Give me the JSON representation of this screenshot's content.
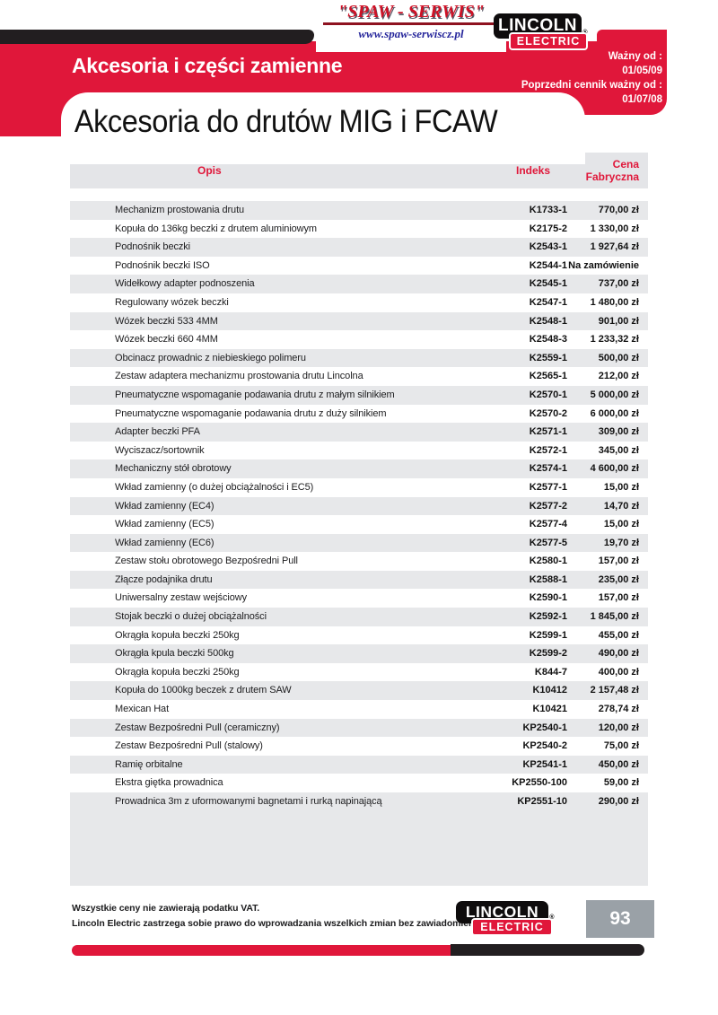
{
  "supplier": {
    "name": "\"SPAW - SERWIS\"",
    "url": "www.spaw-serwiscz.pl"
  },
  "brand": {
    "name": "LINCOLN",
    "sub": "ELECTRIC",
    "reg": "®"
  },
  "header": {
    "section_title": "Akcesoria i części zamienne",
    "valid_from_label": "Ważny od :",
    "valid_from_date": "01/05/09",
    "previous_label": "Poprzedni cennik ważny od :",
    "previous_date": "01/07/08"
  },
  "page_title": "Akcesoria do drutów MIG i FCAW",
  "table": {
    "columns": {
      "description": "Opis",
      "index": "Indeks",
      "price": "Cena Fabryczna"
    },
    "rows": [
      {
        "description": "Mechanizm prostowania drutu",
        "index": "K1733-1",
        "price": "770,00 zł"
      },
      {
        "description": "Kopuła do 136kg beczki z drutem aluminiowym",
        "index": "K2175-2",
        "price": "1 330,00 zł"
      },
      {
        "description": "Podnośnik beczki",
        "index": "K2543-1",
        "price": "1 927,64 zł"
      },
      {
        "description": "Podnośnik beczki ISO",
        "index": "K2544-1",
        "price": "Na zamówienie"
      },
      {
        "description": "Widełkowy adapter podnoszenia",
        "index": "K2545-1",
        "price": "737,00 zł"
      },
      {
        "description": "Regulowany wózek beczki",
        "index": "K2547-1",
        "price": "1 480,00 zł"
      },
      {
        "description": "Wózek beczki 533 4MM",
        "index": "K2548-1",
        "price": "901,00 zł"
      },
      {
        "description": "Wózek beczki 660 4MM",
        "index": "K2548-3",
        "price": "1 233,32 zł"
      },
      {
        "description": "Obcinacz prowadnic z niebieskiego polimeru",
        "index": "K2559-1",
        "price": "500,00 zł"
      },
      {
        "description": "Zestaw adaptera mechanizmu prostowania drutu Lincolna",
        "index": "K2565-1",
        "price": "212,00 zł"
      },
      {
        "description": "Pneumatyczne wspomaganie podawania drutu z małym silnikiem",
        "index": "K2570-1",
        "price": "5 000,00 zł"
      },
      {
        "description": "Pneumatyczne wspomaganie podawania drutu z duży silnikiem",
        "index": "K2570-2",
        "price": "6 000,00 zł"
      },
      {
        "description": "Adapter beczki PFA",
        "index": "K2571-1",
        "price": "309,00 zł"
      },
      {
        "description": "Wyciszacz/sortownik",
        "index": "K2572-1",
        "price": "345,00 zł"
      },
      {
        "description": "Mechaniczny stół obrotowy",
        "index": "K2574-1",
        "price": "4 600,00 zł"
      },
      {
        "description": "Wkład zamienny (o dużej obciążalności i EC5)",
        "index": "K2577-1",
        "price": "15,00 zł"
      },
      {
        "description": "Wkład zamienny (EC4)",
        "index": "K2577-2",
        "price": "14,70 zł"
      },
      {
        "description": "Wkład zamienny (EC5)",
        "index": "K2577-4",
        "price": "15,00 zł"
      },
      {
        "description": "Wkład zamienny (EC6)",
        "index": "K2577-5",
        "price": "19,70 zł"
      },
      {
        "description": "Zestaw stołu obrotowego Bezpośredni Pull",
        "index": "K2580-1",
        "price": "157,00 zł"
      },
      {
        "description": "Złącze podajnika drutu",
        "index": "K2588-1",
        "price": "235,00 zł"
      },
      {
        "description": "Uniwersalny zestaw wejściowy",
        "index": "K2590-1",
        "price": "157,00 zł"
      },
      {
        "description": "Stojak beczki o dużej obciążalności",
        "index": "K2592-1",
        "price": "1 845,00 zł"
      },
      {
        "description": "Okrągła kopuła beczki 250kg",
        "index": "K2599-1",
        "price": "455,00 zł"
      },
      {
        "description": "Okrągła kpula beczki 500kg",
        "index": "K2599-2",
        "price": "490,00 zł"
      },
      {
        "description": "Okrągła kopuła beczki 250kg",
        "index": "K844-7",
        "price": "400,00 zł"
      },
      {
        "description": "Kopuła do 1000kg beczek z drutem SAW",
        "index": "K10412",
        "price": "2 157,48 zł"
      },
      {
        "description": "Mexican Hat",
        "index": "K10421",
        "price": "278,74 zł"
      },
      {
        "description": "Zestaw Bezpośredni Pull (ceramiczny)",
        "index": "KP2540-1",
        "price": "120,00 zł"
      },
      {
        "description": "Zestaw Bezpośredni Pull (stalowy)",
        "index": "KP2540-2",
        "price": "75,00 zł"
      },
      {
        "description": "Ramię orbitalne",
        "index": "KP2541-1",
        "price": "450,00 zł"
      },
      {
        "description": "Ekstra giętka prowadnica",
        "index": "KP2550-100",
        "price": "59,00 zł"
      },
      {
        "description": "Prowadnica 3m z uformowanymi bagnetami i rurką napinającą",
        "index": "KP2551-10",
        "price": "290,00 zł"
      }
    ]
  },
  "footer": {
    "note1": "Wszystkie ceny nie zawierają podatku VAT.",
    "note2": "Lincoln Electric zastrzega sobie prawo do wprowadzania wszelkich zmian bez zawiadomienia.",
    "page_number": "93"
  },
  "colors": {
    "accent_red": "#e0173a",
    "bar_black": "#221e20",
    "row_gray": "#e7e8ea",
    "header_gray": "#e4e5e8",
    "page_box_gray": "#9aa1a7",
    "supplier_red": "#cf1126",
    "url_blue": "#26269b"
  }
}
